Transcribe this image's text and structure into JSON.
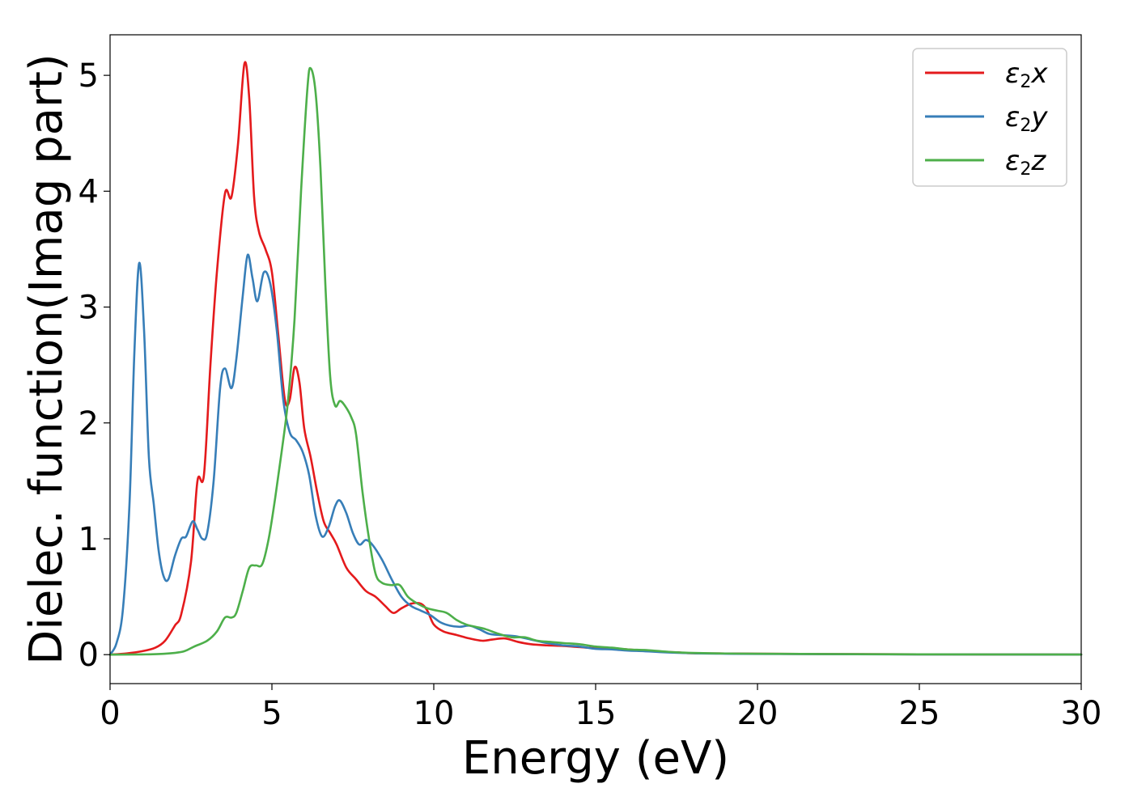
{
  "chart_data": {
    "type": "line",
    "title": "",
    "xlabel": "Energy (eV)",
    "ylabel": "Dielec. function(Imag part)",
    "xlim": [
      0,
      30
    ],
    "ylim": [
      -0.25,
      5.35
    ],
    "xticks": [
      0,
      5,
      10,
      15,
      20,
      25,
      30
    ],
    "yticks": [
      0,
      1,
      2,
      3,
      4,
      5
    ],
    "grid": false,
    "legend_position": "top-right",
    "series": [
      {
        "name": "x",
        "legend_parts": {
          "symbol": "ε",
          "sub": "2",
          "axis": "x"
        },
        "color": "#e41a1c",
        "points": [
          [
            0,
            0
          ],
          [
            0.5,
            0.01
          ],
          [
            1.0,
            0.03
          ],
          [
            1.4,
            0.06
          ],
          [
            1.7,
            0.12
          ],
          [
            2.0,
            0.25
          ],
          [
            2.2,
            0.35
          ],
          [
            2.5,
            0.8
          ],
          [
            2.7,
            1.5
          ],
          [
            2.9,
            1.55
          ],
          [
            3.1,
            2.5
          ],
          [
            3.3,
            3.3
          ],
          [
            3.55,
            3.98
          ],
          [
            3.75,
            3.95
          ],
          [
            3.95,
            4.4
          ],
          [
            4.15,
            5.1
          ],
          [
            4.3,
            4.8
          ],
          [
            4.45,
            3.95
          ],
          [
            4.6,
            3.65
          ],
          [
            4.8,
            3.5
          ],
          [
            5.0,
            3.3
          ],
          [
            5.2,
            2.75
          ],
          [
            5.4,
            2.2
          ],
          [
            5.55,
            2.2
          ],
          [
            5.7,
            2.48
          ],
          [
            5.85,
            2.35
          ],
          [
            6.0,
            1.95
          ],
          [
            6.2,
            1.7
          ],
          [
            6.4,
            1.4
          ],
          [
            6.6,
            1.15
          ],
          [
            6.8,
            1.05
          ],
          [
            7.0,
            0.95
          ],
          [
            7.3,
            0.75
          ],
          [
            7.6,
            0.65
          ],
          [
            7.9,
            0.55
          ],
          [
            8.2,
            0.5
          ],
          [
            8.5,
            0.42
          ],
          [
            8.75,
            0.36
          ],
          [
            9.0,
            0.4
          ],
          [
            9.3,
            0.44
          ],
          [
            9.6,
            0.44
          ],
          [
            9.8,
            0.38
          ],
          [
            10.0,
            0.26
          ],
          [
            10.3,
            0.2
          ],
          [
            10.7,
            0.17
          ],
          [
            11.1,
            0.14
          ],
          [
            11.5,
            0.12
          ],
          [
            11.8,
            0.13
          ],
          [
            12.2,
            0.14
          ],
          [
            12.6,
            0.11
          ],
          [
            13.0,
            0.09
          ],
          [
            13.5,
            0.08
          ],
          [
            14.0,
            0.075
          ],
          [
            14.5,
            0.065
          ],
          [
            15.0,
            0.055
          ],
          [
            15.5,
            0.05
          ],
          [
            16.0,
            0.045
          ],
          [
            16.5,
            0.035
          ],
          [
            17.0,
            0.025
          ],
          [
            17.5,
            0.02
          ],
          [
            18.0,
            0.012
          ],
          [
            19.0,
            0.01
          ],
          [
            20.0,
            0.008
          ],
          [
            22.0,
            0.005
          ],
          [
            25.0,
            0.003
          ],
          [
            30.0,
            0.001
          ]
        ]
      },
      {
        "name": "y",
        "legend_parts": {
          "symbol": "ε",
          "sub": "2",
          "axis": "y"
        },
        "color": "#377eb8",
        "points": [
          [
            0,
            0
          ],
          [
            0.2,
            0.1
          ],
          [
            0.4,
            0.4
          ],
          [
            0.6,
            1.3
          ],
          [
            0.75,
            2.6
          ],
          [
            0.9,
            3.38
          ],
          [
            1.05,
            2.8
          ],
          [
            1.2,
            1.7
          ],
          [
            1.35,
            1.3
          ],
          [
            1.5,
            0.9
          ],
          [
            1.65,
            0.68
          ],
          [
            1.8,
            0.65
          ],
          [
            2.0,
            0.85
          ],
          [
            2.2,
            1.0
          ],
          [
            2.35,
            1.02
          ],
          [
            2.55,
            1.15
          ],
          [
            2.7,
            1.08
          ],
          [
            2.85,
            1.0
          ],
          [
            3.0,
            1.05
          ],
          [
            3.2,
            1.5
          ],
          [
            3.4,
            2.3
          ],
          [
            3.55,
            2.47
          ],
          [
            3.75,
            2.3
          ],
          [
            3.9,
            2.55
          ],
          [
            4.1,
            3.1
          ],
          [
            4.25,
            3.45
          ],
          [
            4.4,
            3.25
          ],
          [
            4.55,
            3.05
          ],
          [
            4.75,
            3.3
          ],
          [
            4.95,
            3.2
          ],
          [
            5.15,
            2.8
          ],
          [
            5.35,
            2.2
          ],
          [
            5.55,
            1.92
          ],
          [
            5.75,
            1.85
          ],
          [
            5.95,
            1.75
          ],
          [
            6.15,
            1.55
          ],
          [
            6.35,
            1.2
          ],
          [
            6.55,
            1.02
          ],
          [
            6.75,
            1.1
          ],
          [
            6.95,
            1.28
          ],
          [
            7.1,
            1.33
          ],
          [
            7.3,
            1.22
          ],
          [
            7.5,
            1.05
          ],
          [
            7.7,
            0.95
          ],
          [
            7.9,
            0.99
          ],
          [
            8.1,
            0.95
          ],
          [
            8.4,
            0.82
          ],
          [
            8.7,
            0.65
          ],
          [
            9.0,
            0.5
          ],
          [
            9.3,
            0.42
          ],
          [
            9.6,
            0.38
          ],
          [
            9.9,
            0.34
          ],
          [
            10.2,
            0.28
          ],
          [
            10.5,
            0.25
          ],
          [
            10.8,
            0.24
          ],
          [
            11.1,
            0.25
          ],
          [
            11.4,
            0.22
          ],
          [
            11.7,
            0.18
          ],
          [
            12.0,
            0.17
          ],
          [
            12.5,
            0.16
          ],
          [
            13.0,
            0.13
          ],
          [
            13.5,
            0.1
          ],
          [
            14.0,
            0.08
          ],
          [
            14.5,
            0.07
          ],
          [
            15.0,
            0.05
          ],
          [
            15.5,
            0.045
          ],
          [
            16.0,
            0.035
          ],
          [
            16.5,
            0.03
          ],
          [
            17.0,
            0.022
          ],
          [
            18.0,
            0.012
          ],
          [
            19.0,
            0.008
          ],
          [
            20.0,
            0.006
          ],
          [
            22.0,
            0.004
          ],
          [
            25.0,
            0.002
          ],
          [
            30.0,
            0.001
          ]
        ]
      },
      {
        "name": "z",
        "legend_parts": {
          "symbol": "ε",
          "sub": "2",
          "axis": "z"
        },
        "color": "#4daf4a",
        "points": [
          [
            0,
            0
          ],
          [
            1.0,
            0.002
          ],
          [
            1.5,
            0.005
          ],
          [
            2.0,
            0.015
          ],
          [
            2.3,
            0.03
          ],
          [
            2.6,
            0.07
          ],
          [
            3.0,
            0.12
          ],
          [
            3.3,
            0.2
          ],
          [
            3.55,
            0.32
          ],
          [
            3.75,
            0.32
          ],
          [
            3.9,
            0.36
          ],
          [
            4.1,
            0.55
          ],
          [
            4.3,
            0.75
          ],
          [
            4.5,
            0.77
          ],
          [
            4.7,
            0.78
          ],
          [
            4.9,
            1.0
          ],
          [
            5.1,
            1.35
          ],
          [
            5.3,
            1.75
          ],
          [
            5.5,
            2.2
          ],
          [
            5.7,
            2.9
          ],
          [
            5.9,
            4.0
          ],
          [
            6.1,
            4.9
          ],
          [
            6.2,
            5.06
          ],
          [
            6.35,
            4.85
          ],
          [
            6.5,
            4.2
          ],
          [
            6.65,
            3.2
          ],
          [
            6.8,
            2.4
          ],
          [
            6.95,
            2.15
          ],
          [
            7.1,
            2.19
          ],
          [
            7.25,
            2.15
          ],
          [
            7.45,
            2.05
          ],
          [
            7.6,
            1.9
          ],
          [
            7.8,
            1.4
          ],
          [
            8.0,
            1.0
          ],
          [
            8.2,
            0.7
          ],
          [
            8.4,
            0.62
          ],
          [
            8.7,
            0.6
          ],
          [
            8.95,
            0.6
          ],
          [
            9.2,
            0.5
          ],
          [
            9.5,
            0.44
          ],
          [
            9.8,
            0.4
          ],
          [
            10.1,
            0.38
          ],
          [
            10.4,
            0.36
          ],
          [
            10.7,
            0.3
          ],
          [
            11.0,
            0.26
          ],
          [
            11.3,
            0.24
          ],
          [
            11.6,
            0.22
          ],
          [
            12.0,
            0.18
          ],
          [
            12.4,
            0.15
          ],
          [
            12.8,
            0.15
          ],
          [
            13.2,
            0.12
          ],
          [
            13.6,
            0.11
          ],
          [
            14.0,
            0.1
          ],
          [
            14.5,
            0.09
          ],
          [
            15.0,
            0.07
          ],
          [
            15.5,
            0.06
          ],
          [
            16.0,
            0.045
          ],
          [
            16.5,
            0.04
          ],
          [
            17.0,
            0.03
          ],
          [
            17.5,
            0.02
          ],
          [
            18.0,
            0.015
          ],
          [
            19.0,
            0.01
          ],
          [
            20.0,
            0.008
          ],
          [
            22.0,
            0.005
          ],
          [
            25.0,
            0.003
          ],
          [
            30.0,
            0.001
          ]
        ]
      }
    ]
  }
}
